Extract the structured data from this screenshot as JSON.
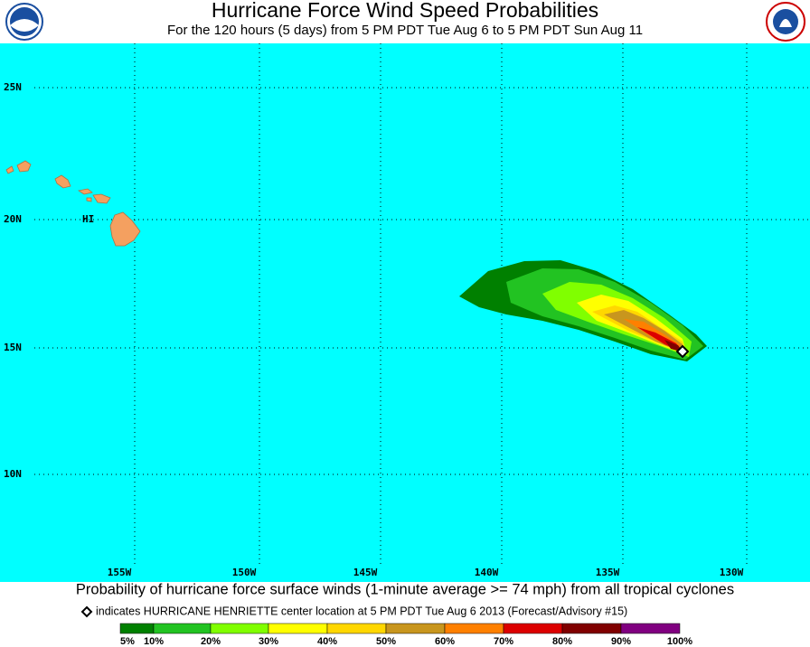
{
  "header": {
    "title": "Hurricane Force Wind Speed Probabilities",
    "subtitle": "For the 120 hours (5 days) from 5 PM PDT Tue Aug 6 to 5 PM PDT Sun Aug 11"
  },
  "map": {
    "lat_labels": [
      "25N",
      "20N",
      "15N",
      "10N"
    ],
    "lon_labels": [
      "155W",
      "150W",
      "145W",
      "140W",
      "135W",
      "130W"
    ],
    "place_labels": [
      "HI"
    ]
  },
  "footer": {
    "caption": "Probability of hurricane force surface winds (1-minute average >= 74 mph) from all tropical cyclones",
    "note": "indicates HURRICANE HENRIETTE center location at 5 PM PDT Tue Aug 6 2013 (Forecast/Advisory #15)"
  },
  "legend": {
    "labels": [
      "5%",
      "10%",
      "20%",
      "30%",
      "40%",
      "50%",
      "60%",
      "70%",
      "80%",
      "90%",
      "100%"
    ],
    "colors": [
      "#008000",
      "#22c322",
      "#80ff00",
      "#ffff00",
      "#ffd700",
      "#c8961e",
      "#ff8000",
      "#dc0000",
      "#800000",
      "#800080"
    ]
  }
}
